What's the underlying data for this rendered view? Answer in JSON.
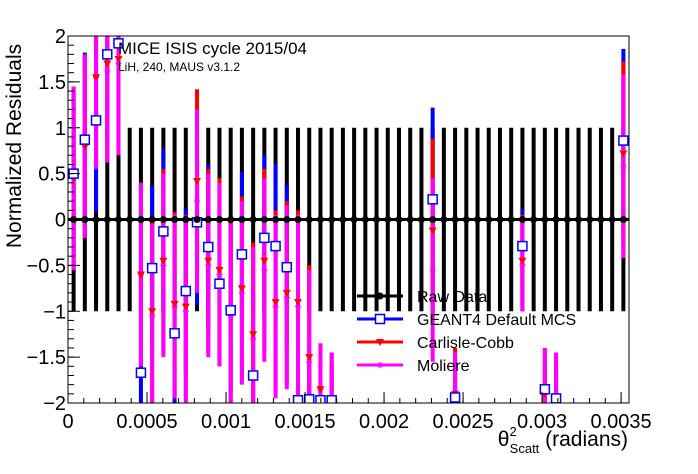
{
  "chart_data": {
    "type": "scatter",
    "title": "",
    "annotation": "MICE ISIS cycle 2015/04",
    "annotation_sub": "LiH, 240, MAUS v3.1.2",
    "xlabel_base": "θ",
    "xlabel_sup": "2",
    "xlabel_sub": "Scatt",
    "xlabel_rest": " (radians)",
    "ylabel": "Normalized Residuals",
    "xlim": [
      0,
      0.00355
    ],
    "ylim": [
      -2,
      2
    ],
    "x_ticks": [
      0,
      0.0005,
      0.001,
      0.0015,
      0.002,
      0.0025,
      0.003,
      0.0035
    ],
    "x_tick_labels": [
      "0",
      "0.0005",
      "0.001",
      "0.0015",
      "0.002",
      "0.0025",
      "0.003",
      "0.0035"
    ],
    "y_ticks": [
      -2,
      -1.5,
      -1,
      -0.5,
      0,
      0.5,
      1,
      1.5,
      2
    ],
    "y_tick_labels": [
      "−2",
      "−1.5",
      "−1",
      "−0.5",
      "0",
      "0.5",
      "1",
      "1.5",
      "2"
    ],
    "grid": false,
    "legend_position": "bottom-right",
    "series": [
      {
        "name": "Raw Data",
        "color": "#000000",
        "marker": "filled-circle",
        "x": [
          3.55e-05,
          0.0001065,
          0.0001775,
          0.0002485,
          0.0003195,
          0.0003905,
          0.0004615,
          0.0005325,
          0.0006035,
          0.0006745,
          0.0007455,
          0.0008165,
          0.0008875,
          0.0009585,
          0.0010295,
          0.0011005,
          0.0011715,
          0.0012425,
          0.0013135,
          0.0013845,
          0.0014555,
          0.0015265,
          0.0015975,
          0.0016685,
          0.0017395,
          0.0018105,
          0.0018815,
          0.0019525,
          0.0020235,
          0.0020945,
          0.0021655,
          0.0022365,
          0.0023075,
          0.0023785,
          0.0024495,
          0.0025205,
          0.0025915,
          0.0026625,
          0.0027335,
          0.0028045,
          0.0028755,
          0.0029465,
          0.0030175,
          0.0030885,
          0.0031595,
          0.0032305,
          0.0033015,
          0.0033725,
          0.0034435,
          0.0035145
        ],
        "y": [
          0,
          0,
          0,
          0,
          0,
          0,
          0,
          0,
          0,
          0,
          0,
          0,
          0,
          0,
          0,
          0,
          0,
          0,
          0,
          0,
          0,
          0,
          0,
          0,
          0,
          0,
          0,
          0,
          0,
          0,
          0,
          0,
          0,
          0,
          0,
          0,
          0,
          0,
          0,
          0,
          0,
          0,
          0,
          0,
          0,
          0,
          0,
          0,
          0,
          0
        ],
        "err": [
          1,
          1,
          1,
          1,
          1,
          1,
          1,
          1,
          1,
          1,
          1,
          1,
          1,
          1,
          1,
          1,
          1,
          1,
          1,
          1,
          1,
          1,
          1,
          1,
          1,
          1,
          1,
          1,
          1,
          1,
          1,
          1,
          1,
          1,
          1,
          1,
          1,
          1,
          1,
          1,
          1,
          1,
          1,
          1,
          1,
          1,
          1,
          1,
          1,
          1
        ]
      },
      {
        "name": "GEANT4 Default MCS",
        "color": "#0000ff",
        "marker": "open-square",
        "x": [
          3.55e-05,
          0.0001065,
          0.0001775,
          0.0002485,
          0.0003195,
          0.0004615,
          0.0005325,
          0.0006035,
          0.0006745,
          0.0007455,
          0.0008165,
          0.0008875,
          0.0009585,
          0.0010295,
          0.0011005,
          0.0011715,
          0.0012425,
          0.0013135,
          0.0013845,
          0.0014555,
          0.0015265,
          0.0015975,
          0.0016685,
          0.0023075,
          0.0024495,
          0.0028755,
          0.0030175,
          0.0030885,
          0.0035145
        ],
        "y": [
          0.5,
          0.87,
          1.08,
          1.8,
          1.92,
          -1.67,
          -0.53,
          -0.13,
          -1.24,
          -0.78,
          -0.03,
          -0.3,
          -0.7,
          -0.99,
          -0.38,
          -1.7,
          -0.2,
          -0.29,
          -0.52,
          -1.97,
          -1.96,
          -1.97,
          -1.97,
          0.22,
          -1.94,
          -0.29,
          -1.85,
          -1.95,
          0.86
        ],
        "err": [
          0.9,
          0.95,
          1.0,
          0.9,
          0.9,
          1.0,
          0.9,
          0.9,
          0.9,
          0.9,
          0.9,
          0.9,
          0.9,
          0.9,
          0.9,
          0.9,
          0.9,
          0.9,
          0.9,
          0.4,
          0.4,
          0.4,
          0.4,
          1.0,
          0.3,
          0.4,
          0.3,
          0.3,
          1.0
        ]
      },
      {
        "name": "Carlisle-Cobb",
        "color": "#ff0000",
        "marker": "filled-triangle-down",
        "x": [
          3.55e-05,
          0.0001065,
          0.0001775,
          0.0002485,
          0.0003195,
          0.0004615,
          0.0005325,
          0.0006035,
          0.0006745,
          0.0007455,
          0.0008165,
          0.0008875,
          0.0009585,
          0.0010295,
          0.0011005,
          0.0011715,
          0.0012425,
          0.0013135,
          0.0013845,
          0.0014555,
          0.0015265,
          0.0015975,
          0.0016685,
          0.0023075,
          0.0024495,
          0.0028755,
          0.0030175,
          0.0030885,
          0.0035145
        ],
        "y": [
          0.45,
          0.8,
          1.55,
          1.7,
          1.75,
          -0.6,
          -1.0,
          -0.45,
          -0.92,
          -0.95,
          0.42,
          -0.45,
          -0.55,
          -1.0,
          -0.75,
          -1.25,
          -0.45,
          -0.9,
          -0.8,
          -0.9,
          -1.5,
          -1.85,
          -1.95,
          -0.12,
          -1.9,
          -0.45,
          -1.9,
          -1.95,
          0.72
        ],
        "err": [
          1.0,
          1.0,
          1.0,
          1.0,
          1.0,
          1.0,
          1.0,
          1.0,
          1.0,
          1.0,
          1.0,
          1.0,
          1.0,
          1.0,
          1.0,
          1.0,
          1.0,
          1.0,
          1.0,
          1.0,
          1.0,
          0.5,
          0.5,
          1.0,
          0.5,
          0.5,
          0.5,
          0.5,
          1.0
        ]
      },
      {
        "name": "Moliere",
        "color": "#ff00ff",
        "marker": "star",
        "x": [
          3.55e-05,
          0.0001065,
          0.0001775,
          0.0002485,
          0.0003195,
          0.0004615,
          0.0005325,
          0.0006035,
          0.0006745,
          0.0007455,
          0.0008165,
          0.0008875,
          0.0009585,
          0.0010295,
          0.0011005,
          0.0011715,
          0.0012425,
          0.0013135,
          0.0013845,
          0.0014555,
          0.0015265,
          0.0015975,
          0.0016685,
          0.0023075,
          0.0024495,
          0.0028755,
          0.0030175,
          0.0030885,
          0.0035145
        ],
        "y": [
          0.45,
          0.8,
          1.55,
          1.62,
          1.7,
          -0.6,
          -1.05,
          -0.5,
          -0.95,
          -1.0,
          0.2,
          -0.5,
          -0.6,
          -1.05,
          -0.8,
          -1.3,
          -0.55,
          -0.95,
          -0.85,
          -0.95,
          -1.55,
          -1.85,
          -1.95,
          -0.55,
          -1.95,
          -0.5,
          -1.9,
          -1.95,
          0.58
        ],
        "err": [
          1.0,
          1.0,
          1.0,
          1.0,
          1.0,
          1.0,
          1.0,
          1.0,
          1.0,
          1.0,
          1.0,
          1.0,
          1.0,
          1.0,
          1.0,
          1.0,
          1.0,
          1.0,
          1.0,
          1.0,
          1.0,
          0.5,
          0.5,
          1.0,
          0.5,
          0.5,
          0.5,
          0.5,
          1.0
        ]
      }
    ]
  }
}
